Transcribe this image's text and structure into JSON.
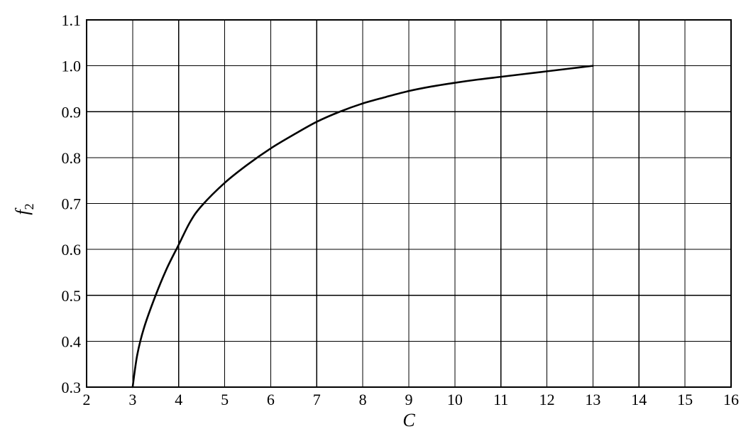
{
  "chart_data": {
    "type": "line",
    "title": "",
    "xlabel": "C",
    "ylabel": "f",
    "ylabel_subscript": "2",
    "xlim": [
      2,
      16
    ],
    "ylim": [
      0.3,
      1.1
    ],
    "x_ticks": [
      2,
      3,
      4,
      5,
      6,
      7,
      8,
      9,
      10,
      11,
      12,
      13,
      14,
      15,
      16
    ],
    "y_ticks": [
      0.3,
      0.4,
      0.5,
      0.6,
      0.7,
      0.8,
      0.9,
      1.0,
      1.1
    ],
    "x_tick_labels": [
      "2",
      "3",
      "4",
      "5",
      "6",
      "7",
      "8",
      "9",
      "10",
      "11",
      "12",
      "13",
      "14",
      "15",
      "16"
    ],
    "y_tick_labels": [
      "0.3",
      "0.4",
      "0.5",
      "0.6",
      "0.7",
      "0.8",
      "0.9",
      "1.0",
      "1.1"
    ],
    "grid": true,
    "legend": "none",
    "series": [
      {
        "color": "#000000",
        "x": [
          3.0,
          3.1,
          3.25,
          3.5,
          3.75,
          4.0,
          4.25,
          4.5,
          5.0,
          5.5,
          6.0,
          6.5,
          7.0,
          7.5,
          8.0,
          8.5,
          9.0,
          9.5,
          10.0,
          10.5,
          11.0,
          11.5,
          12.0,
          12.5,
          13.0
        ],
        "y": [
          0.3,
          0.37,
          0.43,
          0.5,
          0.56,
          0.61,
          0.66,
          0.695,
          0.745,
          0.785,
          0.82,
          0.85,
          0.878,
          0.9,
          0.918,
          0.932,
          0.945,
          0.955,
          0.963,
          0.97,
          0.976,
          0.982,
          0.988,
          0.994,
          1.0
        ]
      }
    ]
  }
}
